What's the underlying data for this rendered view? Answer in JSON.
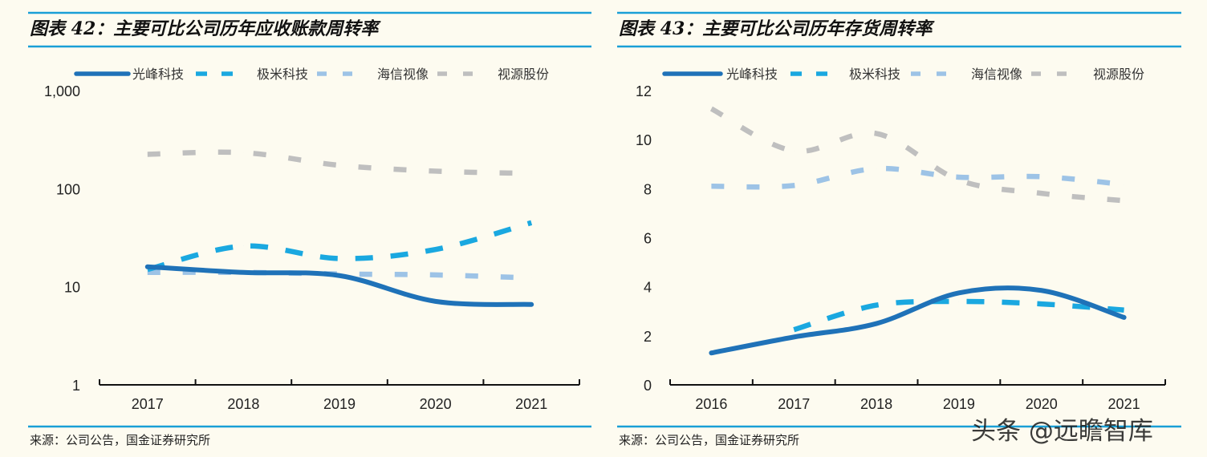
{
  "colors": {
    "background": "#fdfbf0",
    "rule": "#1a9fd6",
    "光峰科技": "#1f72b8",
    "极米科技": "#1aa8e0",
    "海信视像": "#9dc3e6",
    "视源股份": "#bfbfbf"
  },
  "watermark": "头条 @远瞻智库",
  "chart_data": [
    {
      "type": "line",
      "title": "图表 42：主要可比公司历年应收账款周转率",
      "source": "来源：公司公告，国金证券研究所",
      "y_scale": "log",
      "ylim": [
        1,
        1000
      ],
      "y_ticks": [
        1,
        10,
        100,
        1000
      ],
      "y_tick_labels": [
        "1",
        "10",
        "100",
        "1,000"
      ],
      "categories": [
        "2017",
        "2018",
        "2019",
        "2020",
        "2021"
      ],
      "legend_position": "top",
      "grid": false,
      "series": [
        {
          "name": "光峰科技",
          "style": "solid",
          "values": [
            16,
            14,
            13,
            7.1,
            6.6
          ]
        },
        {
          "name": "极米科技",
          "style": "dashed",
          "values": [
            15,
            26,
            19.4,
            24,
            45
          ]
        },
        {
          "name": "海信视像",
          "style": "dashed",
          "values": [
            14,
            14,
            13.5,
            13.2,
            12.3
          ]
        },
        {
          "name": "视源股份",
          "style": "dashed",
          "values": [
            224,
            233,
            173,
            151,
            143
          ]
        }
      ]
    },
    {
      "type": "line",
      "title": "图表 43：主要可比公司历年存货周转率",
      "source": "来源：公司公告，国金证券研究所",
      "y_scale": "linear",
      "ylim": [
        0,
        12
      ],
      "y_ticks": [
        0,
        2,
        4,
        6,
        8,
        10,
        12
      ],
      "y_tick_labels": [
        "0",
        "2",
        "4",
        "6",
        "8",
        "10",
        "12"
      ],
      "categories": [
        "2016",
        "2017",
        "2018",
        "2019",
        "2020",
        "2021"
      ],
      "legend_position": "top",
      "grid": false,
      "series": [
        {
          "name": "光峰科技",
          "style": "solid",
          "values": [
            1.3,
            1.95,
            2.5,
            3.75,
            3.85,
            2.75
          ]
        },
        {
          "name": "极米科技",
          "style": "dashed",
          "values": [
            null,
            2.25,
            3.25,
            3.4,
            3.3,
            3.05
          ]
        },
        {
          "name": "海信视像",
          "style": "dashed",
          "values": [
            8.1,
            8.13,
            8.82,
            8.47,
            8.49,
            8.17
          ]
        },
        {
          "name": "视源股份",
          "style": "dashed",
          "values": [
            11.26,
            9.54,
            10.25,
            8.35,
            7.81,
            7.51
          ]
        }
      ]
    }
  ]
}
